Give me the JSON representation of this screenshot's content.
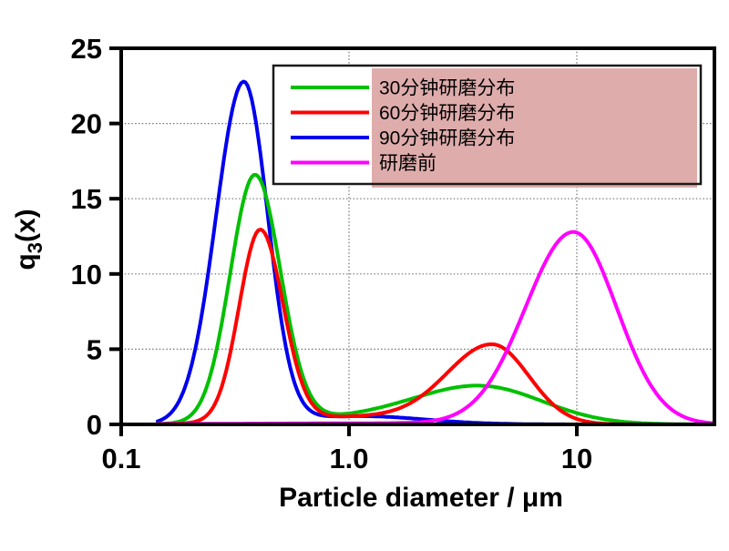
{
  "axes": {
    "x": {
      "label": "Particle diameter / μm",
      "scale": "log",
      "min": 0.1,
      "max": 40,
      "ticks": [
        {
          "value": 0.1,
          "label": "0.1"
        },
        {
          "value": 1.0,
          "label": "1.0"
        },
        {
          "value": 10,
          "label": "10"
        }
      ],
      "gridlines": [
        1.0,
        10
      ]
    },
    "y": {
      "label": "q3(x)",
      "label_base": "q",
      "label_sub": "3",
      "label_rest": "(x)",
      "min": 0,
      "max": 25,
      "ticks": [
        {
          "value": 0,
          "label": "0"
        },
        {
          "value": 5,
          "label": "5"
        },
        {
          "value": 10,
          "label": "10"
        },
        {
          "value": 15,
          "label": "15"
        },
        {
          "value": 20,
          "label": "20"
        },
        {
          "value": 25,
          "label": "25"
        }
      ],
      "gridlines": [
        5,
        10,
        15,
        20
      ]
    }
  },
  "legend": {
    "items": [
      {
        "label": "30分钟研磨分布",
        "color": "#00c000"
      },
      {
        "label": "60分钟研磨分布",
        "color": "#ff0000"
      },
      {
        "label": "90分钟研磨分布",
        "color": "#0000ee"
      },
      {
        "label": "研磨前",
        "color": "#ff00ff"
      }
    ],
    "highlight_overlay": {
      "color": "#dfacac"
    }
  },
  "chart_data": {
    "type": "line",
    "x_scale": "log",
    "xlabel": "Particle diameter / μm",
    "ylabel": "q3(x)",
    "xlim": [
      0.1,
      40
    ],
    "ylim": [
      0,
      25
    ],
    "grid": true,
    "legend_position": "upper right",
    "series": [
      {
        "name": "30分钟研磨分布",
        "color": "#00c000",
        "peaks": [
          {
            "x_um": 0.39,
            "q3": 16.5
          },
          {
            "x_um": 3.9,
            "q3": 2.6
          }
        ],
        "points": [
          [
            0.15,
            0
          ],
          [
            0.2,
            0.6
          ],
          [
            0.25,
            3.5
          ],
          [
            0.3,
            10
          ],
          [
            0.39,
            16.5
          ],
          [
            0.5,
            8
          ],
          [
            0.7,
            1.5
          ],
          [
            1.0,
            0.7
          ],
          [
            1.5,
            0.9
          ],
          [
            2,
            1.3
          ],
          [
            3,
            2.2
          ],
          [
            3.9,
            2.6
          ],
          [
            5,
            2.3
          ],
          [
            7,
            1.2
          ],
          [
            10,
            0.4
          ],
          [
            15,
            0.1
          ],
          [
            20,
            0
          ],
          [
            40,
            0
          ]
        ],
        "render_model": [
          {
            "a": 16.4,
            "mu": -0.413,
            "sl": 0.108,
            "sr": 0.112
          },
          {
            "a": 0.45,
            "mu": 0.1,
            "sl": 0.4,
            "sr": 0.3
          },
          {
            "a": 2.45,
            "mu": 0.585,
            "sl": 0.28,
            "sr": 0.27
          }
        ]
      },
      {
        "name": "60分钟研磨分布",
        "color": "#ff0000",
        "peaks": [
          {
            "x_um": 0.41,
            "q3": 12.8
          },
          {
            "x_um": 4.2,
            "q3": 5.4
          }
        ],
        "points": [
          [
            0.2,
            0
          ],
          [
            0.25,
            1
          ],
          [
            0.3,
            5
          ],
          [
            0.41,
            12.8
          ],
          [
            0.5,
            7
          ],
          [
            0.7,
            1.5
          ],
          [
            1.0,
            0.55
          ],
          [
            2,
            1.5
          ],
          [
            3,
            3.6
          ],
          [
            4.2,
            5.4
          ],
          [
            6,
            4.3
          ],
          [
            8,
            1.9
          ],
          [
            10,
            0.5
          ],
          [
            13,
            0.1
          ],
          [
            15,
            0
          ],
          [
            40,
            0
          ]
        ],
        "render_model": [
          {
            "a": 12.7,
            "mu": -0.39,
            "sl": 0.092,
            "sr": 0.1
          },
          {
            "a": 0.5,
            "mu": 0.05,
            "sl": 0.38,
            "sr": 0.3
          },
          {
            "a": 5.25,
            "mu": 0.63,
            "sl": 0.2,
            "sr": 0.16
          }
        ]
      },
      {
        "name": "90分钟研磨分布",
        "color": "#0000ee",
        "peaks": [
          {
            "x_um": 0.35,
            "q3": 22.7
          }
        ],
        "points": [
          [
            0.15,
            0.1
          ],
          [
            0.2,
            1.5
          ],
          [
            0.25,
            7
          ],
          [
            0.3,
            17
          ],
          [
            0.35,
            22.7
          ],
          [
            0.45,
            13
          ],
          [
            0.55,
            4
          ],
          [
            0.7,
            1.2
          ],
          [
            1.0,
            0.55
          ],
          [
            1.5,
            0.5
          ],
          [
            2,
            0.35
          ],
          [
            3,
            0.15
          ],
          [
            4,
            0.05
          ],
          [
            5,
            0
          ],
          [
            40,
            0
          ]
        ],
        "render_model": [
          {
            "a": 22.6,
            "mu": -0.462,
            "sl": 0.122,
            "sr": 0.105
          },
          {
            "a": 0.55,
            "mu": 0.05,
            "sl": 0.35,
            "sr": 0.28
          }
        ]
      },
      {
        "name": "研磨前",
        "color": "#ff00ff",
        "peaks": [
          {
            "x_um": 9.8,
            "q3": 12.8
          }
        ],
        "points": [
          [
            0.15,
            0.1
          ],
          [
            1,
            0.1
          ],
          [
            2,
            0.1
          ],
          [
            3,
            0.2
          ],
          [
            4,
            0.9
          ],
          [
            5,
            2.6
          ],
          [
            6,
            5.5
          ],
          [
            7,
            8.5
          ],
          [
            8,
            11
          ],
          [
            9.8,
            12.8
          ],
          [
            12,
            11
          ],
          [
            15,
            7
          ],
          [
            20,
            2.5
          ],
          [
            25,
            0.8
          ],
          [
            30,
            0.3
          ],
          [
            35,
            0.1
          ],
          [
            40,
            0
          ]
        ],
        "render_model": [
          {
            "a": 12.75,
            "mu": 0.985,
            "sl": 0.21,
            "sr": 0.19
          },
          {
            "a": 0.08,
            "mu": 0.2,
            "sl": 0.7,
            "sr": 0.7
          }
        ]
      }
    ]
  }
}
